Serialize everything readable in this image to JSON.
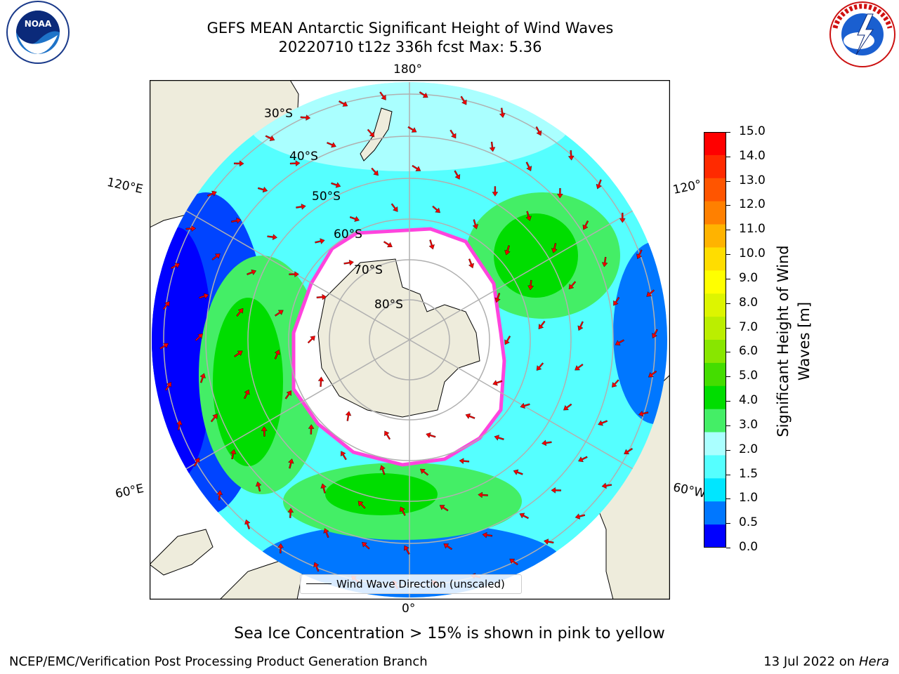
{
  "title": {
    "line1": "GEFS MEAN Antarctic Significant Height of Wind Waves",
    "line2": "20220710 t12z 336h fcst   Max: 5.36"
  },
  "map": {
    "longitude_labels": {
      "top": "180°",
      "bottom": "0°",
      "upper_left": "120°E",
      "upper_right": "120°",
      "lower_left": "60°E",
      "lower_right": "60°W"
    },
    "latitude_labels": [
      "30°S",
      "40°S",
      "50°S",
      "60°S",
      "70°S",
      "80°S"
    ],
    "legend_label": "Wind Wave Direction (unscaled)"
  },
  "colorbar": {
    "ticks": [
      "15.0",
      "14.0",
      "13.0",
      "12.0",
      "11.0",
      "10.0",
      "9.0",
      "8.0",
      "7.0",
      "6.0",
      "5.0",
      "4.0",
      "3.0",
      "2.0",
      "1.5",
      "1.0",
      "0.5",
      "0.0"
    ],
    "colors": [
      "#ff0000",
      "#ff2a00",
      "#ff5500",
      "#ff8000",
      "#ffb300",
      "#ffdd00",
      "#ffff00",
      "#ddf500",
      "#bbee00",
      "#88e600",
      "#44dd00",
      "#00dd00",
      "#44ee66",
      "#aaffff",
      "#55ffff",
      "#00e6ff",
      "#0077ff",
      "#0000ff"
    ],
    "label": "Significant Height of Wind Waves [m]"
  },
  "footnote": "Sea Ice Concentration > 15% is shown in pink to yellow",
  "credit": "NCEP/EMC/Verification Post Processing Product Generation Branch",
  "date": {
    "text": "13 Jul 2022 on ",
    "machine": "Hera"
  }
}
